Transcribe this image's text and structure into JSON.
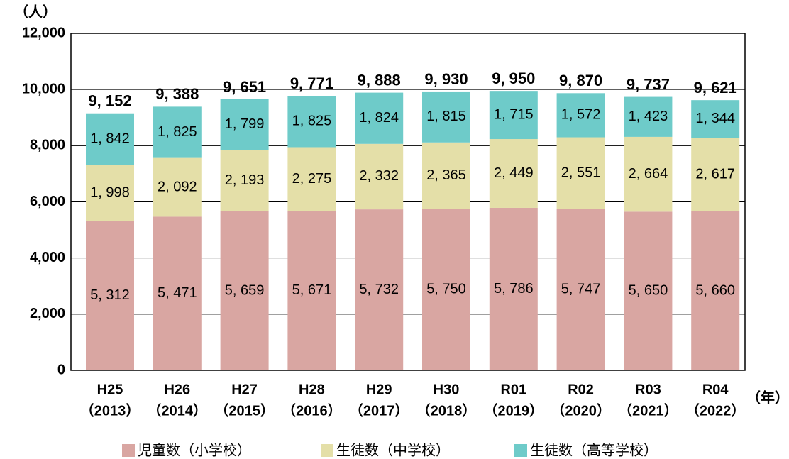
{
  "chart_data": {
    "type": "stacked_bar",
    "y_unit_label": "（人）",
    "x_unit_label": "（年）",
    "categories": [
      "H25",
      "H26",
      "H27",
      "H28",
      "H29",
      "H30",
      "R01",
      "R02",
      "R03",
      "R04"
    ],
    "category_years": [
      "（2013）",
      "（2014）",
      "（2015）",
      "（2016）",
      "（2017）",
      "（2018）",
      "（2019）",
      "（2020）",
      "（2021）",
      "（2022）"
    ],
    "series": [
      {
        "name": "児童数（小学校）",
        "color": "#d9a6a2",
        "values": [
          5312,
          5471,
          5659,
          5671,
          5732,
          5750,
          5786,
          5747,
          5650,
          5660
        ],
        "value_labels": [
          "5, 312",
          "5, 471",
          "5, 659",
          "5, 671",
          "5, 732",
          "5, 750",
          "5, 786",
          "5, 747",
          "5, 650",
          "5, 660"
        ]
      },
      {
        "name": "生徒数（中学校）",
        "color": "#e4dfa8",
        "values": [
          1998,
          2092,
          2193,
          2275,
          2332,
          2365,
          2449,
          2551,
          2664,
          2617
        ],
        "value_labels": [
          "1, 998",
          "2, 092",
          "2, 193",
          "2, 275",
          "2, 332",
          "2, 365",
          "2, 449",
          "2, 551",
          "2, 664",
          "2, 617"
        ]
      },
      {
        "name": "生徒数（高等学校）",
        "color": "#6ecbc9",
        "values": [
          1842,
          1825,
          1799,
          1825,
          1824,
          1815,
          1715,
          1572,
          1423,
          1344
        ],
        "value_labels": [
          "1, 842",
          "1, 825",
          "1, 799",
          "1, 825",
          "1, 824",
          "1, 815",
          "1, 715",
          "1, 572",
          "1, 423",
          "1, 344"
        ]
      }
    ],
    "totals": [
      9152,
      9388,
      9651,
      9771,
      9888,
      9930,
      9950,
      9870,
      9737,
      9621
    ],
    "total_labels": [
      "9, 152",
      "9, 388",
      "9, 651",
      "9, 771",
      "9, 888",
      "9, 930",
      "9, 950",
      "9, 870",
      "9, 737",
      "9, 621"
    ],
    "ylim": [
      0,
      12000
    ],
    "yticks": [
      0,
      {
        "value": 2000,
        "label": "2,000"
      },
      {
        "value": 4000,
        "label": "4,000"
      },
      {
        "value": 6000,
        "label": "6,000"
      },
      {
        "value": 8000,
        "label": "8,000"
      },
      {
        "value": 10000,
        "label": "10,000"
      },
      {
        "value": 12000,
        "label": "12,000"
      }
    ],
    "grid": true,
    "legend": "bottom"
  }
}
